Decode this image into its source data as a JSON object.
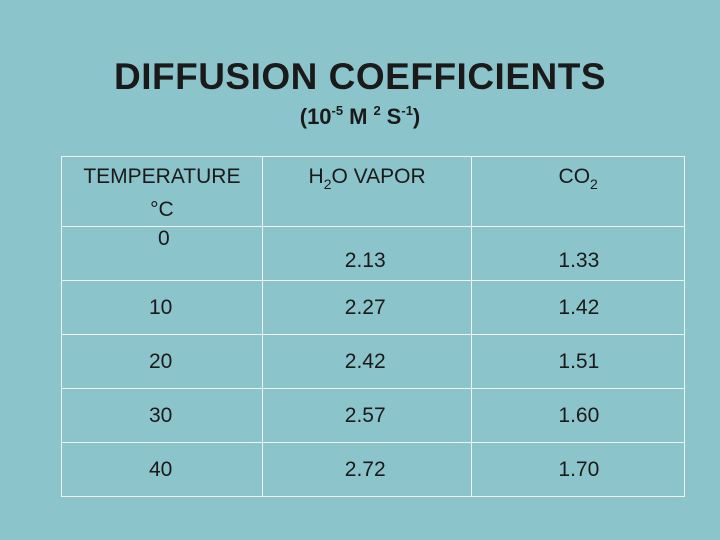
{
  "slide": {
    "title": "DIFFUSION COEFFICIENTS",
    "units": {
      "base": "(10",
      "exp1": "-5",
      "mid": "M",
      "exp2": "2",
      "s": "S",
      "exp3": "-1",
      "close": ")"
    }
  },
  "table": {
    "headers": {
      "temperature": "TEMPERATURE",
      "temperature_unit": "°C",
      "h2o_pre": "H",
      "h2o_sub": "2",
      "h2o_post": "O VAPOR",
      "co2_pre": "CO",
      "co2_sub": "2"
    },
    "rows": [
      {
        "temp": "0",
        "h2o": "2.13",
        "co2": "1.33"
      },
      {
        "temp": "10",
        "h2o": "2.27",
        "co2": "1.42"
      },
      {
        "temp": "20",
        "h2o": "2.42",
        "co2": "1.51"
      },
      {
        "temp": "30",
        "h2o": "2.57",
        "co2": "1.60"
      },
      {
        "temp": "40",
        "h2o": "2.72",
        "co2": "1.70"
      }
    ]
  }
}
